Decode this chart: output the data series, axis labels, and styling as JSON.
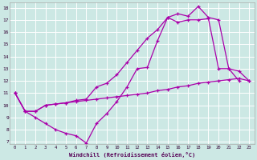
{
  "xlabel": "Windchill (Refroidissement éolien,°C)",
  "xlim": [
    -0.5,
    23.5
  ],
  "ylim": [
    6.8,
    18.4
  ],
  "bg_color": "#cce8e4",
  "line_color": "#aa00aa",
  "grid_color": "#ffffff",
  "line1_x": [
    0,
    1,
    2,
    3,
    4,
    5,
    6,
    7,
    8,
    9,
    10,
    11,
    12,
    13,
    14,
    15,
    16,
    17,
    18,
    19,
    20,
    21,
    22
  ],
  "line1_y": [
    11.0,
    9.5,
    9.0,
    8.5,
    8.0,
    7.7,
    7.5,
    6.9,
    8.5,
    9.3,
    10.3,
    11.5,
    13.0,
    13.1,
    15.3,
    17.2,
    17.5,
    17.3,
    18.1,
    17.2,
    17.0,
    13.0,
    12.0
  ],
  "line2_x": [
    0,
    1,
    2,
    3,
    4,
    5,
    6,
    7,
    8,
    9,
    10,
    11,
    12,
    13,
    14,
    15,
    16,
    17,
    18,
    19,
    20,
    21,
    22,
    23
  ],
  "line2_y": [
    11.0,
    9.5,
    9.5,
    10.0,
    10.1,
    10.2,
    10.4,
    10.5,
    11.5,
    11.8,
    12.5,
    13.5,
    14.5,
    15.5,
    16.2,
    17.2,
    16.8,
    17.0,
    17.0,
    17.1,
    13.0,
    13.0,
    12.8,
    12.0
  ],
  "line3_x": [
    0,
    1,
    2,
    3,
    4,
    5,
    6,
    7,
    8,
    9,
    10,
    11,
    12,
    13,
    14,
    15,
    16,
    17,
    18,
    19,
    20,
    21,
    22,
    23
  ],
  "line3_y": [
    11.0,
    9.5,
    9.5,
    10.0,
    10.1,
    10.2,
    10.3,
    10.4,
    10.5,
    10.6,
    10.7,
    10.8,
    10.9,
    11.0,
    11.2,
    11.3,
    11.5,
    11.6,
    11.8,
    11.9,
    12.0,
    12.1,
    12.2,
    12.0
  ],
  "yticks": [
    7,
    8,
    9,
    10,
    11,
    12,
    13,
    14,
    15,
    16,
    17,
    18
  ],
  "xticks": [
    0,
    1,
    2,
    3,
    4,
    5,
    6,
    7,
    8,
    9,
    10,
    11,
    12,
    13,
    14,
    15,
    16,
    17,
    18,
    19,
    20,
    21,
    22,
    23
  ]
}
